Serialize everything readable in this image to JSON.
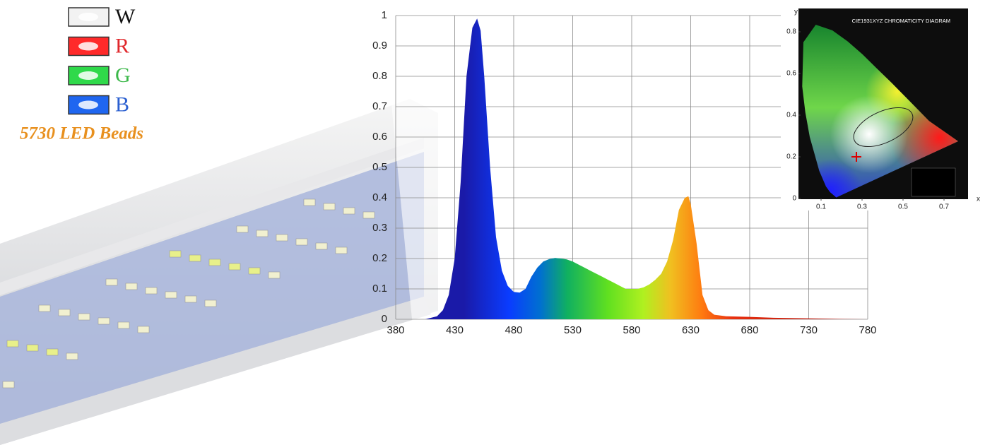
{
  "product": {
    "legend": [
      {
        "label": "W",
        "color": "#111111",
        "swatch": "#f2f2f2"
      },
      {
        "label": "R",
        "color": "#e0282c",
        "swatch": "#ff2a2a"
      },
      {
        "label": "G",
        "color": "#3cb84a",
        "swatch": "#2fd94a"
      },
      {
        "label": "B",
        "color": "#2a5fd0",
        "swatch": "#1f66f0"
      }
    ],
    "caption": "5730 LED Beads"
  },
  "chart_data": [
    {
      "type": "area",
      "x": [
        400,
        405,
        410,
        415,
        420,
        425,
        430,
        435,
        440,
        445,
        449,
        452,
        455,
        460,
        465,
        470,
        475,
        480,
        485,
        490,
        495,
        500,
        505,
        510,
        515,
        520,
        525,
        530,
        535,
        540,
        545,
        550,
        555,
        560,
        565,
        570,
        575,
        580,
        585,
        590,
        595,
        600,
        605,
        610,
        615,
        620,
        625,
        628,
        630,
        635,
        640,
        645,
        650,
        660,
        680,
        700,
        730,
        760,
        780
      ],
      "values": [
        0,
        0,
        0.005,
        0.01,
        0.03,
        0.08,
        0.2,
        0.45,
        0.8,
        0.96,
        0.99,
        0.95,
        0.8,
        0.5,
        0.27,
        0.16,
        0.11,
        0.09,
        0.088,
        0.1,
        0.14,
        0.17,
        0.19,
        0.198,
        0.202,
        0.2,
        0.197,
        0.19,
        0.18,
        0.17,
        0.16,
        0.15,
        0.14,
        0.13,
        0.12,
        0.11,
        0.1,
        0.1,
        0.1,
        0.105,
        0.115,
        0.13,
        0.15,
        0.19,
        0.26,
        0.36,
        0.4,
        0.405,
        0.38,
        0.25,
        0.08,
        0.03,
        0.015,
        0.01,
        0.008,
        0.005,
        0.003,
        0.001,
        0
      ],
      "xlim": [
        380,
        780
      ],
      "xticks": [
        380,
        430,
        480,
        530,
        580,
        630,
        680,
        730,
        780
      ],
      "ylim": [
        0,
        1
      ],
      "yticks": [
        0,
        0.1,
        0.2,
        0.3,
        0.4,
        0.5,
        0.6,
        0.7,
        0.8,
        0.9,
        1
      ],
      "grid": true
    },
    {
      "type": "chromaticity",
      "title": "CIE1931XYZ CHROMATICITY DIAGRAM",
      "x_label": "x",
      "y_label": "y",
      "xlim": [
        0,
        0.8
      ],
      "xticks": [
        0.1,
        0.3,
        0.5,
        0.7
      ],
      "ylim": [
        0,
        0.9
      ],
      "yticks": [
        0,
        0.2,
        0.4,
        0.6,
        0.8
      ]
    }
  ]
}
